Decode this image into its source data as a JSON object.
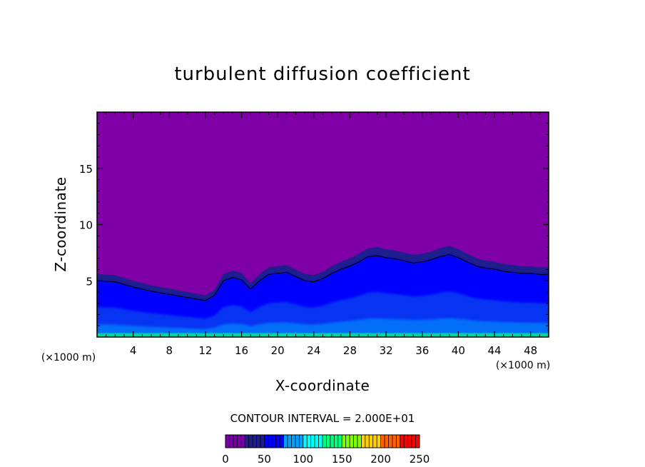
{
  "chart_data": {
    "type": "heatmap",
    "title": "turbulent diffusion coefficient",
    "xlabel": "X-coordinate",
    "ylabel": "Z-coordinate",
    "x_unit_label_left": "(×1000 m)",
    "x_unit_label_right": "(×1000 m)",
    "xlim": [
      0,
      50
    ],
    "ylim": [
      0,
      20
    ],
    "x_ticks": [
      4,
      8,
      12,
      16,
      20,
      24,
      28,
      32,
      36,
      40,
      44,
      48
    ],
    "y_ticks": [
      5,
      10,
      15
    ],
    "contour_interval_label": "CONTOUR INTERVAL = 2.000E+01",
    "colorbar": {
      "min": 0,
      "max": 250,
      "ticks": [
        0,
        50,
        100,
        150,
        200,
        250
      ],
      "colors": [
        "#7a00a8",
        "#1e1e8c",
        "#0000ff",
        "#00a0ff",
        "#00ffff",
        "#00ff80",
        "#80ff00",
        "#ffd000",
        "#ff6000",
        "#ff0000"
      ]
    },
    "background_value": 0,
    "background_color": "#8000a8",
    "turbulent_layer_top": [
      [
        0,
        5.6
      ],
      [
        2,
        5.5
      ],
      [
        4,
        5.0
      ],
      [
        6,
        4.6
      ],
      [
        8,
        4.3
      ],
      [
        10,
        4.0
      ],
      [
        12,
        3.7
      ],
      [
        13,
        4.2
      ],
      [
        14,
        5.6
      ],
      [
        15,
        5.9
      ],
      [
        16,
        5.7
      ],
      [
        17,
        4.8
      ],
      [
        18,
        5.6
      ],
      [
        19,
        6.2
      ],
      [
        20,
        6.3
      ],
      [
        21,
        6.4
      ],
      [
        22,
        6.0
      ],
      [
        23,
        5.6
      ],
      [
        24,
        5.5
      ],
      [
        25,
        5.8
      ],
      [
        26,
        6.3
      ],
      [
        27,
        6.7
      ],
      [
        28,
        7.0
      ],
      [
        29,
        7.4
      ],
      [
        30,
        7.9
      ],
      [
        31,
        8.0
      ],
      [
        32,
        7.8
      ],
      [
        33,
        7.7
      ],
      [
        34,
        7.5
      ],
      [
        35,
        7.3
      ],
      [
        36,
        7.4
      ],
      [
        37,
        7.6
      ],
      [
        38,
        7.9
      ],
      [
        39,
        8.1
      ],
      [
        40,
        7.8
      ],
      [
        41,
        7.4
      ],
      [
        42,
        7.0
      ],
      [
        43,
        6.8
      ],
      [
        44,
        6.7
      ],
      [
        45,
        6.5
      ],
      [
        46,
        6.4
      ],
      [
        47,
        6.3
      ],
      [
        48,
        6.3
      ],
      [
        49,
        6.2
      ],
      [
        50,
        6.2
      ]
    ]
  }
}
